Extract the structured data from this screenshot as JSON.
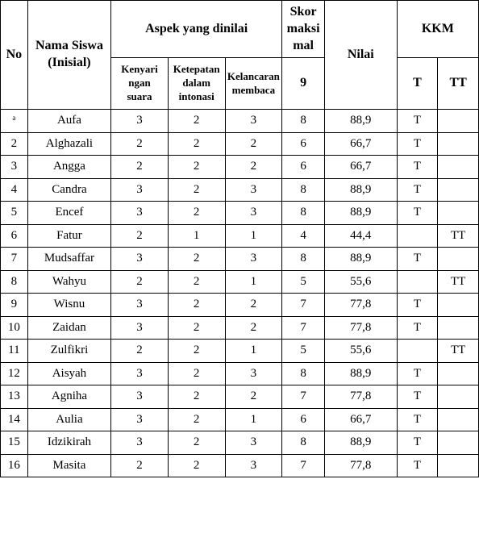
{
  "headers": {
    "no": "No",
    "nama_siswa_line1": "Nama Siswa",
    "nama_siswa_line2": "(Inisial)",
    "aspek": "Aspek yang dinilai",
    "skor_line1": "Skor",
    "skor_line2": "maksi",
    "skor_line3": "mal",
    "nilai": "Nilai",
    "kkm": "KKM",
    "sub_kenyari_l1": "Kenyari",
    "sub_kenyari_l2": "ngan",
    "sub_kenyari_l3": "suara",
    "sub_ketepatan_l1": "Ketepatan",
    "sub_ketepatan_l2": "dalam",
    "sub_ketepatan_l3": "intonasi",
    "sub_kelancaran_l1": "Kelancaran",
    "sub_kelancaran_l2": "membaca",
    "skor_max": "9",
    "t": "T",
    "tt": "TT"
  },
  "rows": [
    {
      "no": "ᵃ",
      "nama": "Aufa",
      "a1": "3",
      "a2": "2",
      "a3": "3",
      "skor": "8",
      "nilai": "88,9",
      "t": "T",
      "tt": ""
    },
    {
      "no": "2",
      "nama": "Alghazali",
      "a1": "2",
      "a2": "2",
      "a3": "2",
      "skor": "6",
      "nilai": "66,7",
      "t": "T",
      "tt": ""
    },
    {
      "no": "3",
      "nama": "Angga",
      "a1": "2",
      "a2": "2",
      "a3": "2",
      "skor": "6",
      "nilai": "66,7",
      "t": "T",
      "tt": ""
    },
    {
      "no": "4",
      "nama": "Candra",
      "a1": "3",
      "a2": "2",
      "a3": "3",
      "skor": "8",
      "nilai": "88,9",
      "t": "T",
      "tt": ""
    },
    {
      "no": "5",
      "nama": "Encef",
      "a1": "3",
      "a2": "2",
      "a3": "3",
      "skor": "8",
      "nilai": "88,9",
      "t": "T",
      "tt": ""
    },
    {
      "no": "6",
      "nama": "Fatur",
      "a1": "2",
      "a2": "1",
      "a3": "1",
      "skor": "4",
      "nilai": "44,4",
      "t": "",
      "tt": "TT"
    },
    {
      "no": "7",
      "nama": "Mudsaffar",
      "a1": "3",
      "a2": "2",
      "a3": "3",
      "skor": "8",
      "nilai": "88,9",
      "t": "T",
      "tt": ""
    },
    {
      "no": "8",
      "nama": "Wahyu",
      "a1": "2",
      "a2": "2",
      "a3": "1",
      "skor": "5",
      "nilai": "55,6",
      "t": "",
      "tt": "TT"
    },
    {
      "no": "9",
      "nama": "Wisnu",
      "a1": "3",
      "a2": "2",
      "a3": "2",
      "skor": "7",
      "nilai": "77,8",
      "t": "T",
      "tt": ""
    },
    {
      "no": "10",
      "nama": "Zaidan",
      "a1": "3",
      "a2": "2",
      "a3": "2",
      "skor": "7",
      "nilai": "77,8",
      "t": "T",
      "tt": ""
    },
    {
      "no": "11",
      "nama": "Zulfikri",
      "a1": "2",
      "a2": "2",
      "a3": "1",
      "skor": "5",
      "nilai": "55,6",
      "t": "",
      "tt": "TT"
    },
    {
      "no": "12",
      "nama": "Aisyah",
      "a1": "3",
      "a2": "2",
      "a3": "3",
      "skor": "8",
      "nilai": "88,9",
      "t": "T",
      "tt": ""
    },
    {
      "no": "13",
      "nama": "Agniha",
      "a1": "3",
      "a2": "2",
      "a3": "2",
      "skor": "7",
      "nilai": "77,8",
      "t": "T",
      "tt": ""
    },
    {
      "no": "14",
      "nama": "Aulia",
      "a1": "3",
      "a2": "2",
      "a3": "1",
      "skor": "6",
      "nilai": "66,7",
      "t": "T",
      "tt": ""
    },
    {
      "no": "15",
      "nama": "Idzikirah",
      "a1": "3",
      "a2": "2",
      "a3": "3",
      "skor": "8",
      "nilai": "88,9",
      "t": "T",
      "tt": ""
    },
    {
      "no": "16",
      "nama": "Masita",
      "a1": "2",
      "a2": "2",
      "a3": "3",
      "skor": "7",
      "nilai": "77,8",
      "t": "T",
      "tt": ""
    }
  ]
}
